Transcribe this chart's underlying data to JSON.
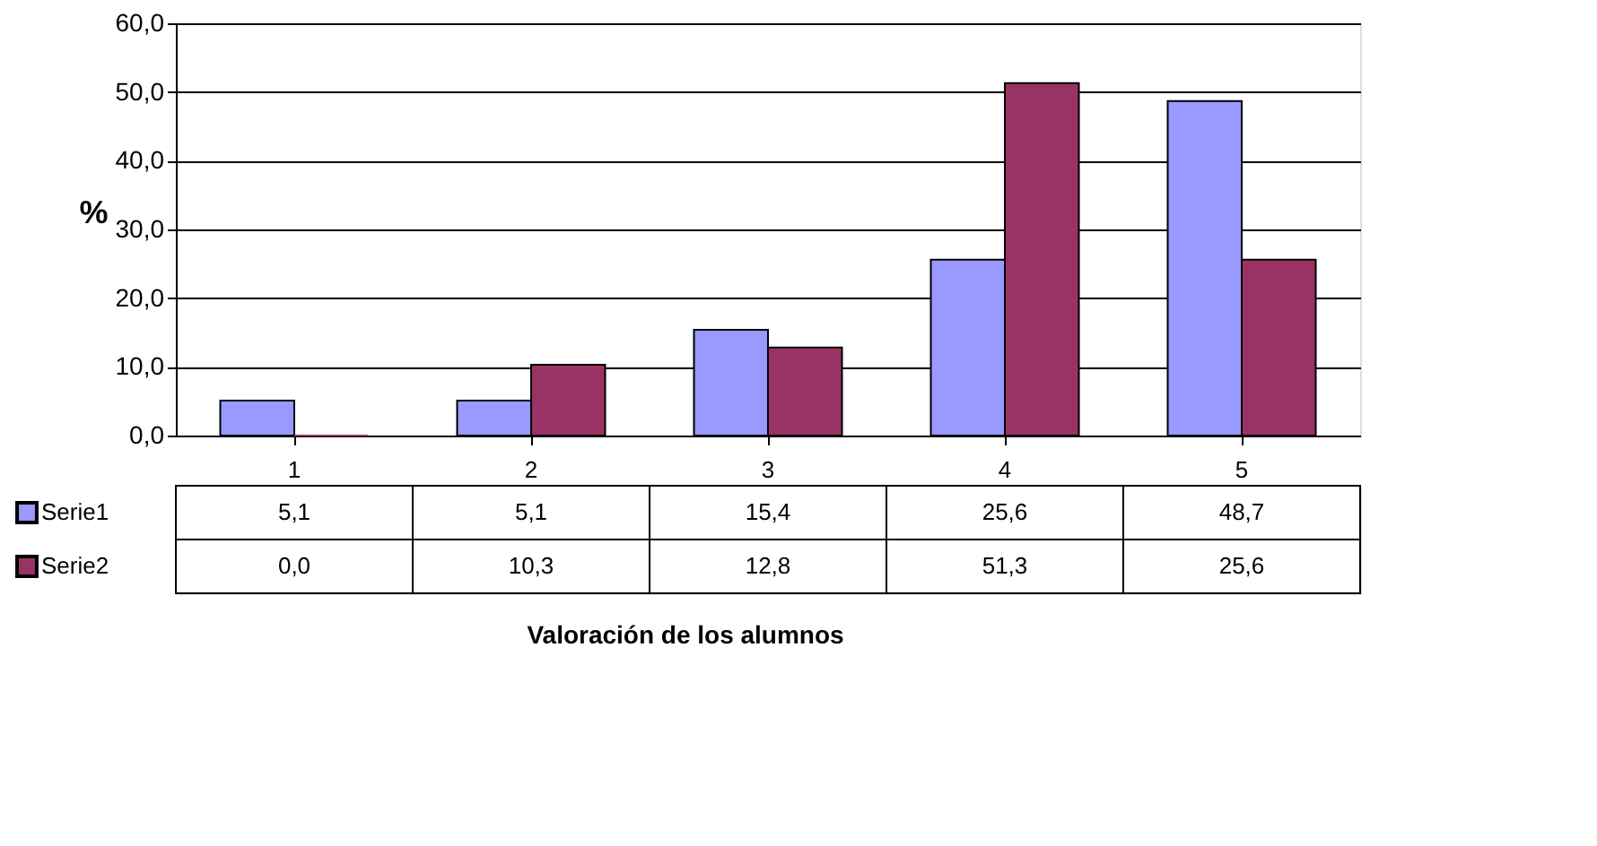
{
  "chart_data": {
    "type": "bar",
    "annotations": [
      "Valoración de los alumnos"
    ],
    "ylabel": "%",
    "categories": [
      "1",
      "2",
      "3",
      "4",
      "5"
    ],
    "series": [
      {
        "name": "Serie1",
        "color": "#9999ff",
        "values": [
          5.1,
          5.1,
          15.4,
          25.6,
          48.7
        ],
        "value_labels": [
          "5,1",
          "5,1",
          "15,4",
          "25,6",
          "48,7"
        ]
      },
      {
        "name": "Serie2",
        "color": "#993366",
        "values": [
          0.0,
          10.3,
          12.8,
          51.3,
          25.6
        ],
        "value_labels": [
          "0,0",
          "10,3",
          "12,8",
          "51,3",
          "25,6"
        ]
      }
    ],
    "ylim": [
      0,
      60
    ],
    "yticks": [
      {
        "value": 0,
        "label": "0,0"
      },
      {
        "value": 10,
        "label": "10,0"
      },
      {
        "value": 20,
        "label": "20,0"
      },
      {
        "value": 30,
        "label": "30,0"
      },
      {
        "value": 40,
        "label": "40,0"
      },
      {
        "value": 50,
        "label": "50,0"
      },
      {
        "value": 60,
        "label": "60,0"
      }
    ],
    "grid": "y",
    "legend": "bottom left"
  }
}
